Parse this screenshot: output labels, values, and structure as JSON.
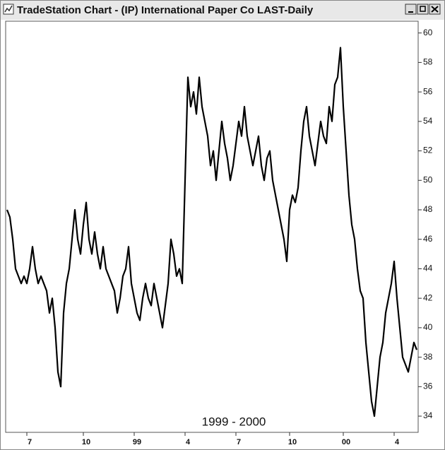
{
  "chart_data": {
    "type": "line",
    "title": "TradeStation Chart - (IP) International Paper Co LAST-Daily",
    "annotation": "1999 - 2000",
    "color": "#000000",
    "ylim": [
      32.9,
      60.8
    ],
    "yticks": [
      34,
      36,
      38,
      40,
      42,
      44,
      46,
      48,
      50,
      52,
      54,
      56,
      58,
      60
    ],
    "categories": [
      null,
      null,
      null,
      null,
      null,
      null,
      null,
      "7",
      null,
      null,
      null,
      null,
      null,
      null,
      null,
      null,
      null,
      null,
      null,
      null,
      null,
      null,
      null,
      null,
      null,
      null,
      null,
      "10",
      null,
      null,
      null,
      null,
      null,
      null,
      null,
      null,
      null,
      null,
      null,
      null,
      null,
      null,
      null,
      null,
      null,
      "99",
      null,
      null,
      null,
      null,
      null,
      null,
      null,
      null,
      null,
      null,
      null,
      null,
      null,
      null,
      null,
      null,
      null,
      "4",
      null,
      null,
      null,
      null,
      null,
      null,
      null,
      null,
      null,
      null,
      null,
      null,
      null,
      null,
      null,
      null,
      null,
      "7",
      null,
      null,
      null,
      null,
      null,
      null,
      null,
      null,
      null,
      null,
      null,
      null,
      null,
      null,
      null,
      null,
      null,
      null,
      "10",
      null,
      null,
      null,
      null,
      null,
      null,
      null,
      null,
      null,
      null,
      null,
      null,
      null,
      null,
      null,
      null,
      null,
      null,
      "00",
      null,
      null,
      null,
      null,
      null,
      null,
      null,
      null,
      null,
      null,
      null,
      null,
      null,
      null,
      null,
      null,
      null,
      "4",
      null,
      null,
      null,
      null,
      null,
      null,
      null,
      null
    ],
    "values": [
      48,
      47.5,
      46,
      44,
      43.5,
      43,
      43.5,
      43,
      44,
      45.5,
      44,
      43,
      43.5,
      43,
      42.5,
      41,
      42,
      40,
      37,
      36,
      41,
      43,
      44,
      46,
      48,
      46,
      45,
      47,
      48.5,
      46,
      45,
      46.5,
      45,
      44,
      45.5,
      44,
      43.5,
      43,
      42.5,
      41,
      42,
      43.5,
      44,
      45.5,
      43,
      42,
      41,
      40.5,
      42,
      43,
      42,
      41.5,
      43,
      42,
      41,
      40,
      41.5,
      43,
      46,
      45,
      43.5,
      44,
      43,
      50,
      57,
      55,
      56,
      54.5,
      57,
      55,
      54,
      53,
      51,
      52,
      50,
      52,
      54,
      52.5,
      51.5,
      50,
      51,
      52.5,
      54,
      53,
      55,
      53,
      52,
      51,
      52,
      53,
      51,
      50,
      51.5,
      52,
      50,
      49,
      48,
      47,
      46,
      44.5,
      48,
      49,
      48.5,
      49.5,
      52,
      54,
      55,
      53,
      52,
      51,
      52.5,
      54,
      53,
      52.5,
      55,
      54,
      56.5,
      57,
      59,
      55,
      52,
      49,
      47,
      46,
      44,
      42.5,
      42,
      39,
      37,
      35,
      34,
      36,
      38,
      39,
      41,
      42,
      43,
      44.5,
      42,
      40,
      38,
      37.5,
      37,
      38,
      39,
      38.5
    ]
  }
}
